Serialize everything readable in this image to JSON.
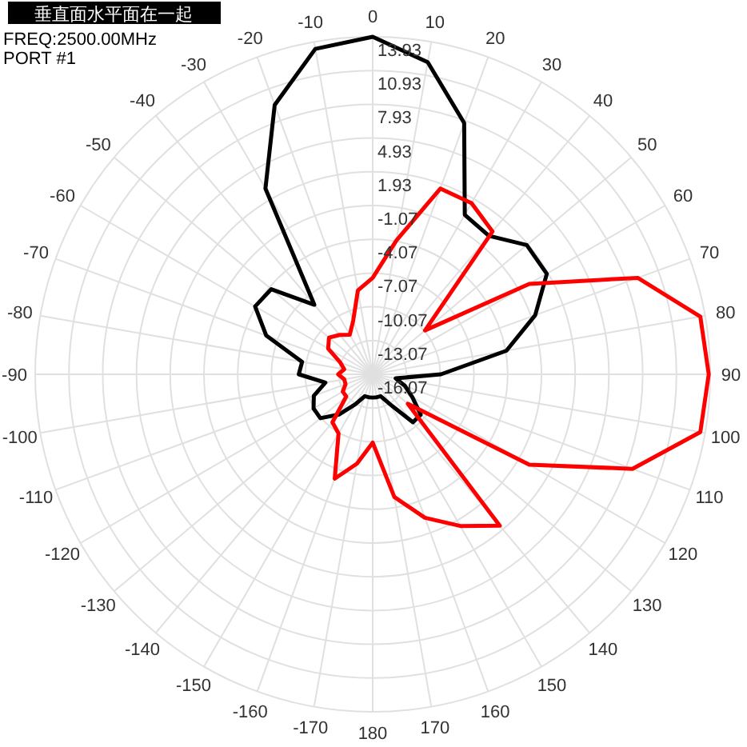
{
  "chart_data": {
    "type": "radar",
    "title": "垂直面水平面在一起",
    "annotations": [
      "FREQ:2500.00MHz",
      "PORT #1"
    ],
    "categories": [
      "0",
      "10",
      "20",
      "30",
      "40",
      "50",
      "60",
      "70",
      "80",
      "90",
      "100",
      "110",
      "120",
      "130",
      "140",
      "150",
      "160",
      "170",
      "180",
      "-170",
      "-160",
      "-150",
      "-140",
      "-130",
      "-120",
      "-110",
      "-100",
      "-90",
      "-80",
      "-70",
      "-60",
      "-50",
      "-40",
      "-30",
      "-20",
      "-10"
    ],
    "series": [
      {
        "color": "#000000",
        "values": [
          13.93,
          12.1,
          7.7,
          0.3,
          0.0,
          1.8,
          1.8,
          -0.7,
          -4.0,
          -10,
          -14,
          -13,
          -12,
          -10.5,
          -10.5,
          -13,
          -14,
          -14,
          -14,
          -14,
          -14,
          -13,
          -11.4,
          -10,
          -10,
          -10.5,
          -11.8,
          -9.5,
          -9.7,
          -6.0,
          -4.0,
          -4.3,
          -8.0,
          3.0,
          9.4,
          13.3
        ]
      },
      {
        "color": "#ff0000",
        "values": [
          -7.5,
          -4,
          1.5,
          1.5,
          0.5,
          -10,
          0.0,
          9.0,
          13.5,
          13.8,
          13.5,
          8.5,
          0.0,
          -12,
          1.5,
          -0.5,
          -2.5,
          -5,
          -10,
          -8,
          -6.2,
          -10,
          -10.5,
          -13,
          -13,
          -13.5,
          -13.5,
          -13,
          -13.5,
          -13,
          -11.5,
          -11,
          -11.5,
          -12,
          -11,
          -8.5
        ]
      }
    ],
    "ylim": [
      -16.07,
      13.93
    ],
    "yticks": [
      13.93,
      10.93,
      7.93,
      4.93,
      1.93,
      -1.07,
      -4.07,
      -7.07,
      -10.07,
      -13.07,
      -16.07
    ],
    "grid": true
  }
}
